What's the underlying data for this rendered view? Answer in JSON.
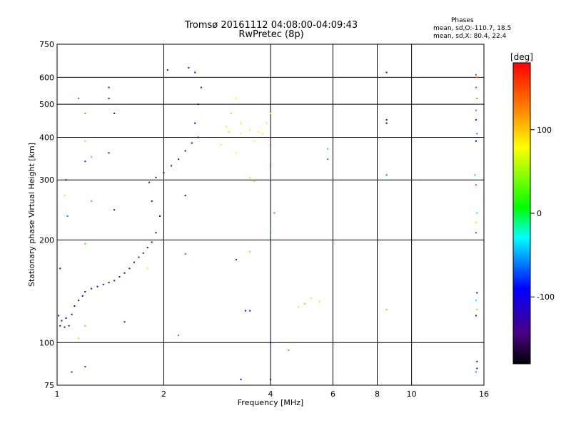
{
  "chart_data": {
    "type": "scatter",
    "title": "Tromsø 20161112 04:08:00-04:09:43",
    "subtitle": "RwPretec (8p)",
    "xlabel": "Frequency [MHz]",
    "ylabel": "Stationary phase Virtual Height [km]",
    "xscale": "log",
    "yscale": "log",
    "xlim": [
      1,
      16
    ],
    "ylim": [
      75,
      750
    ],
    "grid": true,
    "x_ticks": [
      1,
      2,
      4,
      6,
      8,
      10,
      16
    ],
    "x_tick_labels": [
      "1",
      "2",
      "4",
      "6",
      "8",
      "10",
      "16"
    ],
    "y_ticks": [
      75,
      100,
      200,
      300,
      400,
      500,
      600,
      750
    ],
    "y_tick_labels": [
      "75",
      "100",
      "200",
      "300",
      "400",
      "500",
      "600",
      "750"
    ],
    "stats": {
      "title": "Phases",
      "line1": "mean, sd,O:-110.7, 18.5",
      "line2": "mean, sd,X:  80.4, 22.4"
    },
    "colorbar": {
      "label": "[deg]",
      "range": [
        -180,
        180
      ],
      "ticks": [
        100,
        0,
        -100
      ],
      "tick_labels": [
        "100",
        "0",
        "-100"
      ]
    },
    "series": [
      {
        "value_meaning": "phase in degrees",
        "points": [
          [
            1.02,
            112,
            -110
          ],
          [
            1.05,
            111,
            -112
          ],
          [
            1.08,
            112,
            -115
          ],
          [
            1.03,
            116,
            -105
          ],
          [
            1.06,
            118,
            -108
          ],
          [
            1.1,
            121,
            -110
          ],
          [
            1.12,
            128,
            -112
          ],
          [
            1.15,
            133,
            -115
          ],
          [
            1.18,
            137,
            -110
          ],
          [
            1.2,
            141,
            -118
          ],
          [
            1.25,
            144,
            -112
          ],
          [
            1.3,
            146,
            -120
          ],
          [
            1.35,
            148,
            -115
          ],
          [
            1.4,
            150,
            -122
          ],
          [
            1.45,
            152,
            -118
          ],
          [
            1.5,
            156,
            -125
          ],
          [
            1.55,
            160,
            -120
          ],
          [
            1.6,
            165,
            -125
          ],
          [
            1.65,
            172,
            -122
          ],
          [
            1.7,
            178,
            -128
          ],
          [
            1.75,
            183,
            -125
          ],
          [
            1.8,
            190,
            -130
          ],
          [
            1.85,
            197,
            -128
          ],
          [
            1.9,
            210,
            -125
          ],
          [
            1.95,
            235,
            -120
          ],
          [
            1.85,
            260,
            -130
          ],
          [
            1.82,
            295,
            -128
          ],
          [
            1.9,
            305,
            -125
          ],
          [
            2.0,
            315,
            -122
          ],
          [
            2.1,
            330,
            -120
          ],
          [
            2.2,
            345,
            -118
          ],
          [
            2.3,
            365,
            -115
          ],
          [
            2.4,
            385,
            -112
          ],
          [
            2.5,
            400,
            -110
          ],
          [
            2.45,
            440,
            -108
          ],
          [
            2.5,
            500,
            -106
          ],
          [
            2.55,
            560,
            -104
          ],
          [
            2.45,
            620,
            -105
          ],
          [
            2.35,
            640,
            -110
          ],
          [
            2.05,
            630,
            -115
          ],
          [
            3.0,
            430,
            90
          ],
          [
            3.1,
            470,
            95
          ],
          [
            3.2,
            520,
            80
          ],
          [
            3.5,
            420,
            85
          ],
          [
            3.8,
            410,
            88
          ],
          [
            4.0,
            470,
            82
          ],
          [
            3.6,
            390,
            75
          ],
          [
            3.3,
            440,
            92
          ],
          [
            2.9,
            380,
            70
          ],
          [
            3.2,
            360,
            82
          ],
          [
            1.02,
            165,
            -95
          ],
          [
            1.01,
            120,
            -110
          ],
          [
            1.15,
            520,
            150
          ],
          [
            1.2,
            470,
            130
          ],
          [
            1.2,
            390,
            45
          ],
          [
            1.2,
            340,
            -80
          ],
          [
            1.2,
            195,
            20
          ],
          [
            1.2,
            112,
            115
          ],
          [
            1.15,
            103,
            95
          ],
          [
            1.2,
            85,
            -75
          ],
          [
            1.4,
            560,
            -130
          ],
          [
            1.4,
            520,
            -120
          ],
          [
            1.45,
            470,
            -110
          ],
          [
            1.4,
            360,
            -130
          ],
          [
            1.45,
            245,
            -120
          ],
          [
            1.55,
            115,
            -130
          ],
          [
            1.05,
            270,
            60
          ],
          [
            1.07,
            235,
            -60
          ],
          [
            1.06,
            300,
            -110
          ],
          [
            2.2,
            105,
            150
          ],
          [
            2.3,
            270,
            -130
          ],
          [
            1.25,
            350,
            20
          ],
          [
            1.25,
            260,
            10
          ],
          [
            3.5,
            305,
            60
          ],
          [
            3.6,
            298,
            40
          ],
          [
            4.0,
            380,
            150
          ],
          [
            4.0,
            330,
            160
          ],
          [
            4.1,
            240,
            140
          ],
          [
            4.0,
            215,
            -40
          ],
          [
            3.5,
            185,
            105
          ],
          [
            3.2,
            175,
            -110
          ],
          [
            2.3,
            182,
            150
          ],
          [
            1.8,
            165,
            70
          ],
          [
            3.4,
            124,
            -120
          ],
          [
            3.5,
            124,
            -115
          ],
          [
            4.8,
            127,
            60
          ],
          [
            5.0,
            130,
            45
          ],
          [
            5.2,
            135,
            70
          ],
          [
            5.5,
            132,
            95
          ],
          [
            4.5,
            95,
            130
          ],
          [
            4.0,
            100,
            -95
          ],
          [
            4.0,
            78,
            -120
          ],
          [
            3.3,
            78,
            -105
          ],
          [
            5.8,
            370,
            -40
          ],
          [
            5.8,
            345,
            -60
          ],
          [
            8.5,
            620,
            -110
          ],
          [
            8.5,
            450,
            -120
          ],
          [
            8.5,
            440,
            -115
          ],
          [
            8.5,
            310,
            -60
          ],
          [
            8.5,
            125,
            110
          ],
          [
            15.2,
            610,
            150
          ],
          [
            15.3,
            600,
            140
          ],
          [
            15.2,
            560,
            160
          ],
          [
            15.3,
            520,
            130
          ],
          [
            15.2,
            480,
            145
          ],
          [
            15.2,
            450,
            -80
          ],
          [
            15.3,
            410,
            -60
          ],
          [
            15.2,
            390,
            -90
          ],
          [
            15.1,
            310,
            -40
          ],
          [
            15.2,
            290,
            150
          ],
          [
            15.3,
            240,
            -20
          ],
          [
            15.2,
            225,
            90
          ],
          [
            15.2,
            210,
            160
          ],
          [
            15.3,
            140,
            -135
          ],
          [
            15.2,
            133,
            -20
          ],
          [
            15.3,
            125,
            110
          ],
          [
            15.2,
            120,
            -120
          ],
          [
            15.3,
            88,
            -95
          ],
          [
            15.2,
            82,
            -50
          ],
          [
            15.3,
            84,
            -110
          ],
          [
            1.1,
            82,
            -75
          ],
          [
            3.05,
            415,
            95
          ],
          [
            3.3,
            410,
            85
          ],
          [
            3.7,
            415,
            80
          ],
          [
            3.9,
            440,
            90
          ]
        ]
      }
    ]
  }
}
